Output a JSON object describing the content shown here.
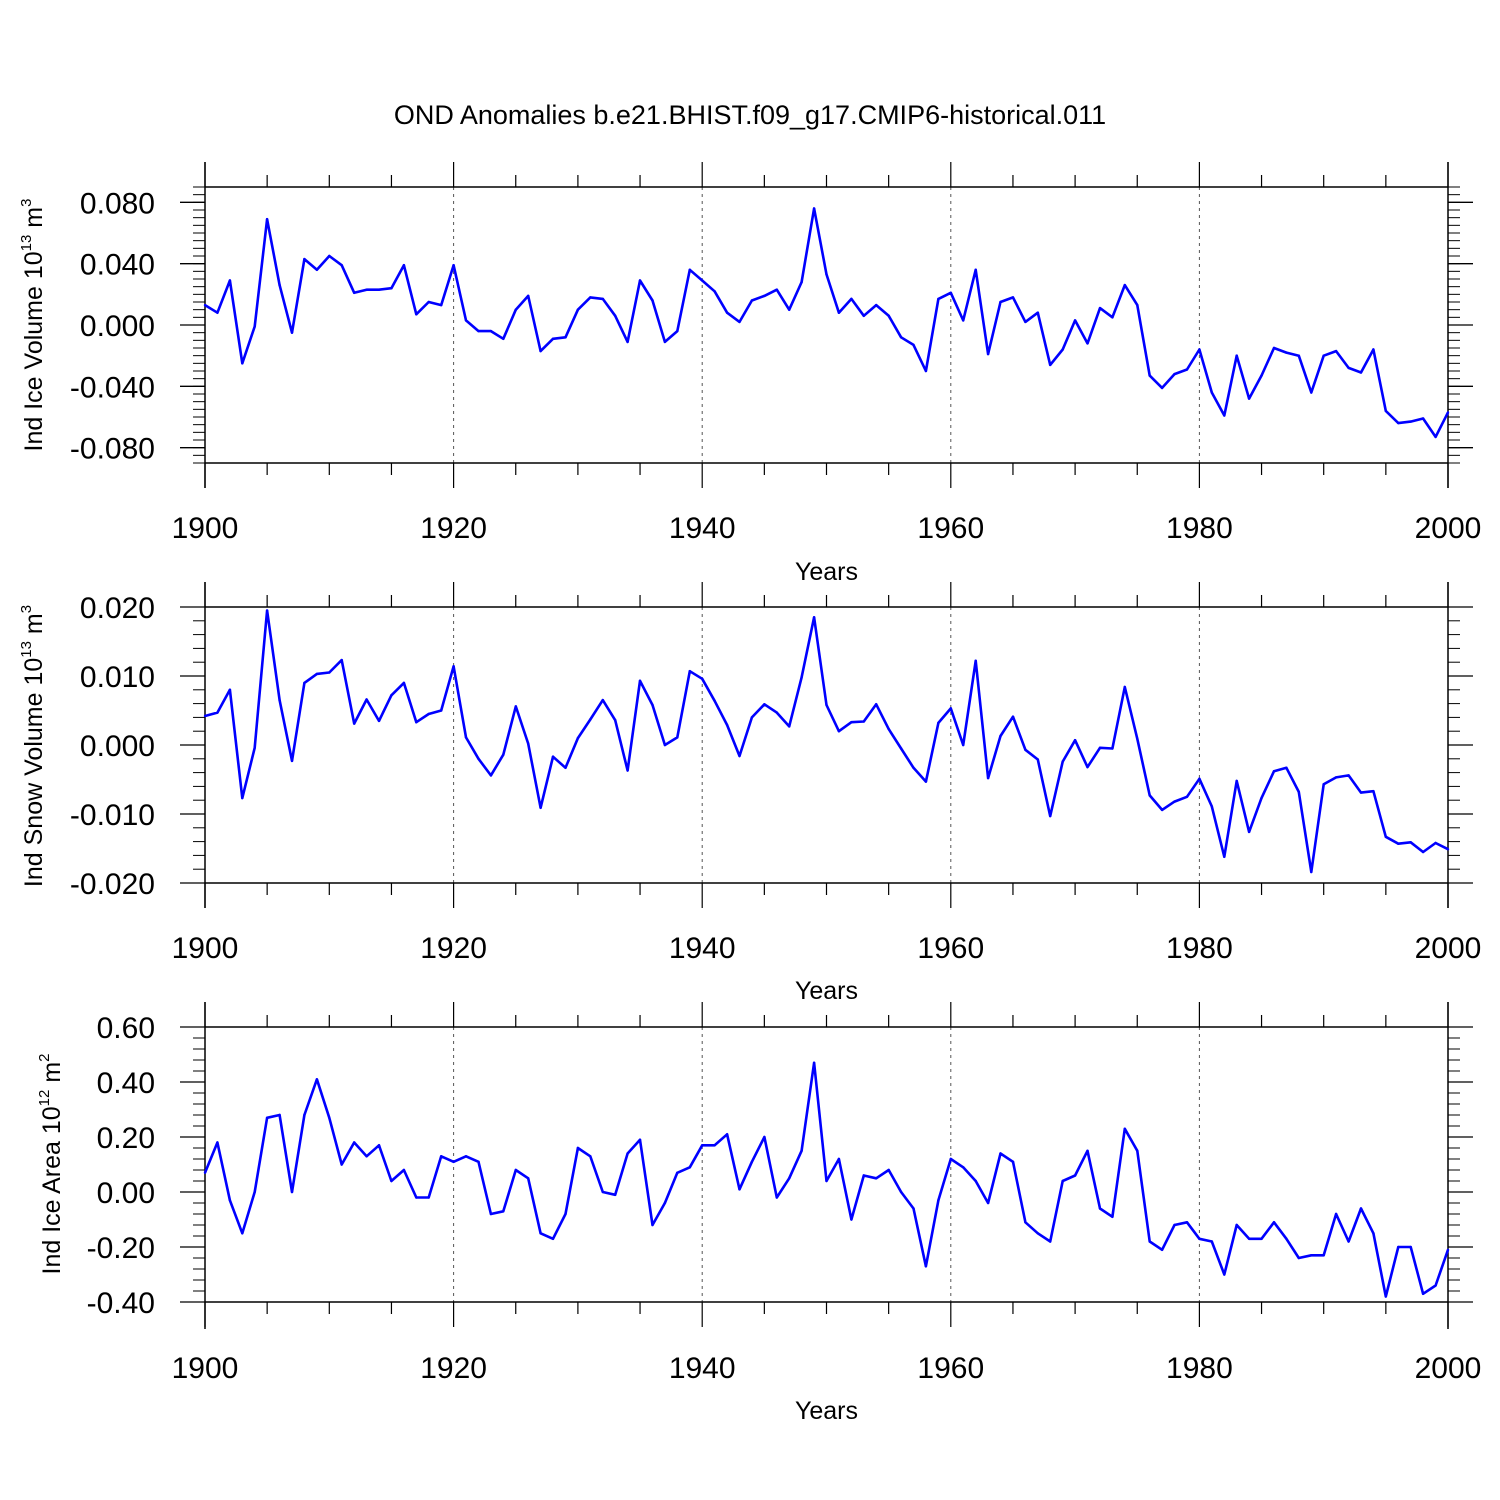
{
  "title": "OND Anomalies b.e21.BHIST.f09_g17.CMIP6-historical.011",
  "chart_data": [
    {
      "type": "line",
      "name": "ice-volume",
      "ylabel": {
        "base": "Ind Ice Volume 10",
        "exp": "13",
        "unit": " m",
        "unit_exp": "3"
      },
      "xlabel": "Years",
      "xlim": [
        1900,
        2000
      ],
      "ylim": [
        -0.09,
        0.09
      ],
      "xticks": [
        "1900",
        "1920",
        "1940",
        "1960",
        "1980",
        "2000"
      ],
      "yticks": [
        "0.080",
        "0.040",
        "0.000",
        "-0.040",
        "-0.080"
      ],
      "line_color": "#0000ff",
      "grid": "dashed vertical at major x ticks",
      "x": [
        1900,
        1901,
        1902,
        1903,
        1904,
        1905,
        1906,
        1907,
        1908,
        1909,
        1910,
        1911,
        1912,
        1913,
        1914,
        1915,
        1916,
        1917,
        1918,
        1919,
        1920,
        1921,
        1922,
        1923,
        1924,
        1925,
        1926,
        1927,
        1928,
        1929,
        1930,
        1931,
        1932,
        1933,
        1934,
        1935,
        1936,
        1937,
        1938,
        1939,
        1940,
        1941,
        1942,
        1943,
        1944,
        1945,
        1946,
        1947,
        1948,
        1949,
        1950,
        1951,
        1952,
        1953,
        1954,
        1955,
        1956,
        1957,
        1958,
        1959,
        1960,
        1961,
        1962,
        1963,
        1964,
        1965,
        1966,
        1967,
        1968,
        1969,
        1970,
        1971,
        1972,
        1973,
        1974,
        1975,
        1976,
        1977,
        1978,
        1979,
        1980,
        1981,
        1982,
        1983,
        1984,
        1985,
        1986,
        1987,
        1988,
        1989,
        1990,
        1991,
        1992,
        1993,
        1994,
        1995,
        1996,
        1997,
        1998,
        1999,
        2000
      ],
      "values": [
        0.013,
        0.008,
        0.029,
        -0.025,
        -0.001,
        0.069,
        0.026,
        -0.005,
        0.043,
        0.036,
        0.045,
        0.039,
        0.021,
        0.023,
        0.023,
        0.024,
        0.039,
        0.007,
        0.015,
        0.013,
        0.039,
        0.003,
        -0.004,
        -0.004,
        -0.009,
        0.01,
        0.019,
        -0.017,
        -0.009,
        -0.008,
        0.01,
        0.018,
        0.017,
        0.006,
        -0.011,
        0.029,
        0.016,
        -0.011,
        -0.004,
        0.036,
        0.029,
        0.022,
        0.008,
        0.002,
        0.016,
        0.019,
        0.023,
        0.01,
        0.028,
        0.076,
        0.033,
        0.008,
        0.017,
        0.006,
        0.013,
        0.006,
        -0.008,
        -0.013,
        -0.03,
        0.017,
        0.021,
        0.003,
        0.036,
        -0.019,
        0.015,
        0.018,
        0.002,
        0.008,
        -0.026,
        -0.016,
        0.003,
        -0.012,
        0.011,
        0.005,
        0.026,
        0.013,
        -0.033,
        -0.041,
        -0.032,
        -0.029,
        -0.016,
        -0.044,
        -0.059,
        -0.02,
        -0.048,
        -0.033,
        -0.015,
        -0.018,
        -0.02,
        -0.044,
        -0.02,
        -0.017,
        -0.028,
        -0.031,
        -0.016,
        -0.056,
        -0.064,
        -0.063,
        -0.061,
        -0.073,
        -0.057
      ]
    },
    {
      "type": "line",
      "name": "snow-volume",
      "ylabel": {
        "base": "Ind Snow Volume 10",
        "exp": "13",
        "unit": " m",
        "unit_exp": "3"
      },
      "xlabel": "Years",
      "xlim": [
        1900,
        2000
      ],
      "ylim": [
        -0.02,
        0.02
      ],
      "xticks": [
        "1900",
        "1920",
        "1940",
        "1960",
        "1980",
        "2000"
      ],
      "yticks": [
        "0.020",
        "0.010",
        "0.000",
        "-0.010",
        "-0.020"
      ],
      "line_color": "#0000ff",
      "grid": "dashed vertical at major x ticks",
      "x": [
        1900,
        1901,
        1902,
        1903,
        1904,
        1905,
        1906,
        1907,
        1908,
        1909,
        1910,
        1911,
        1912,
        1913,
        1914,
        1915,
        1916,
        1917,
        1918,
        1919,
        1920,
        1921,
        1922,
        1923,
        1924,
        1925,
        1926,
        1927,
        1928,
        1929,
        1930,
        1931,
        1932,
        1933,
        1934,
        1935,
        1936,
        1937,
        1938,
        1939,
        1940,
        1941,
        1942,
        1943,
        1944,
        1945,
        1946,
        1947,
        1948,
        1949,
        1950,
        1951,
        1952,
        1953,
        1954,
        1955,
        1956,
        1957,
        1958,
        1959,
        1960,
        1961,
        1962,
        1963,
        1964,
        1965,
        1966,
        1967,
        1968,
        1969,
        1970,
        1971,
        1972,
        1973,
        1974,
        1975,
        1976,
        1977,
        1978,
        1979,
        1980,
        1981,
        1982,
        1983,
        1984,
        1985,
        1986,
        1987,
        1988,
        1989,
        1990,
        1991,
        1992,
        1993,
        1994,
        1995,
        1996,
        1997,
        1998,
        1999,
        2000
      ],
      "values": [
        0.0042,
        0.0047,
        0.008,
        -0.0077,
        -0.0004,
        0.0195,
        0.0065,
        -0.0023,
        0.009,
        0.0103,
        0.0105,
        0.0123,
        0.0031,
        0.0066,
        0.0035,
        0.0072,
        0.009,
        0.0033,
        0.0045,
        0.005,
        0.0114,
        0.0011,
        -0.002,
        -0.0044,
        -0.0014,
        0.0056,
        0.0002,
        -0.0091,
        -0.0017,
        -0.0033,
        0.001,
        0.0037,
        0.0065,
        0.0036,
        -0.0037,
        0.0093,
        0.0058,
        0.0,
        0.0011,
        0.0107,
        0.0096,
        0.0064,
        0.0029,
        -0.0016,
        0.004,
        0.0059,
        0.0047,
        0.0027,
        0.0098,
        0.0185,
        0.0058,
        0.002,
        0.0033,
        0.0034,
        0.0059,
        0.0023,
        -0.0005,
        -0.0033,
        -0.0053,
        0.0032,
        0.0053,
        0.0,
        0.0122,
        -0.0048,
        0.0013,
        0.0041,
        -0.0007,
        -0.0021,
        -0.0103,
        -0.0024,
        0.0007,
        -0.0032,
        -0.0004,
        -0.0005,
        0.0084,
        0.0009,
        -0.0073,
        -0.0094,
        -0.0082,
        -0.0075,
        -0.0049,
        -0.0089,
        -0.0162,
        -0.0052,
        -0.0126,
        -0.0077,
        -0.0038,
        -0.0033,
        -0.0068,
        -0.0184,
        -0.0057,
        -0.0047,
        -0.0044,
        -0.0069,
        -0.0067,
        -0.0133,
        -0.0143,
        -0.0141,
        -0.0155,
        -0.0142,
        -0.0151
      ]
    },
    {
      "type": "line",
      "name": "ice-area",
      "ylabel": {
        "base": "Ind Ice Area 10",
        "exp": "12",
        "unit": " m",
        "unit_exp": "2"
      },
      "xlabel": "Years",
      "xlim": [
        1900,
        2000
      ],
      "ylim": [
        -0.4,
        0.6
      ],
      "xticks": [
        "1900",
        "1920",
        "1940",
        "1960",
        "1980",
        "2000"
      ],
      "yticks": [
        "0.60",
        "0.40",
        "0.20",
        "0.00",
        "-0.20",
        "-0.40"
      ],
      "line_color": "#0000ff",
      "grid": "dashed vertical at major x ticks",
      "x": [
        1900,
        1901,
        1902,
        1903,
        1904,
        1905,
        1906,
        1907,
        1908,
        1909,
        1910,
        1911,
        1912,
        1913,
        1914,
        1915,
        1916,
        1917,
        1918,
        1919,
        1920,
        1921,
        1922,
        1923,
        1924,
        1925,
        1926,
        1927,
        1928,
        1929,
        1930,
        1931,
        1932,
        1933,
        1934,
        1935,
        1936,
        1937,
        1938,
        1939,
        1940,
        1941,
        1942,
        1943,
        1944,
        1945,
        1946,
        1947,
        1948,
        1949,
        1950,
        1951,
        1952,
        1953,
        1954,
        1955,
        1956,
        1957,
        1958,
        1959,
        1960,
        1961,
        1962,
        1963,
        1964,
        1965,
        1966,
        1967,
        1968,
        1969,
        1970,
        1971,
        1972,
        1973,
        1974,
        1975,
        1976,
        1977,
        1978,
        1979,
        1980,
        1981,
        1982,
        1983,
        1984,
        1985,
        1986,
        1987,
        1988,
        1989,
        1990,
        1991,
        1992,
        1993,
        1994,
        1995,
        1996,
        1997,
        1998,
        1999,
        2000
      ],
      "values": [
        0.07,
        0.18,
        -0.03,
        -0.15,
        0.0,
        0.27,
        0.28,
        0.0,
        0.28,
        0.41,
        0.27,
        0.1,
        0.18,
        0.13,
        0.17,
        0.04,
        0.08,
        -0.02,
        -0.02,
        0.13,
        0.11,
        0.13,
        0.11,
        -0.08,
        -0.07,
        0.08,
        0.05,
        -0.15,
        -0.17,
        -0.08,
        0.16,
        0.13,
        0.0,
        -0.01,
        0.14,
        0.19,
        -0.12,
        -0.04,
        0.07,
        0.09,
        0.17,
        0.17,
        0.21,
        0.01,
        0.11,
        0.2,
        -0.02,
        0.05,
        0.15,
        0.47,
        0.04,
        0.12,
        -0.1,
        0.06,
        0.05,
        0.08,
        0.0,
        -0.06,
        -0.27,
        -0.03,
        0.12,
        0.09,
        0.04,
        -0.04,
        0.14,
        0.11,
        -0.11,
        -0.15,
        -0.18,
        0.04,
        0.06,
        0.15,
        -0.06,
        -0.09,
        0.23,
        0.15,
        -0.18,
        -0.21,
        -0.12,
        -0.11,
        -0.17,
        -0.18,
        -0.3,
        -0.12,
        -0.17,
        -0.17,
        -0.11,
        -0.17,
        -0.24,
        -0.23,
        -0.23,
        -0.08,
        -0.18,
        -0.06,
        -0.15,
        -0.38,
        -0.2,
        -0.2,
        -0.37,
        -0.34,
        -0.21
      ]
    }
  ]
}
